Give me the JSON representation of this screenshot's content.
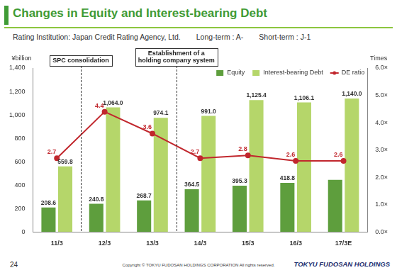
{
  "header": {
    "title": "Changes in Equity and Interest-bearing Debt",
    "rating_agency": "Rating Institution: Japan Credit Rating Agency, Ltd.",
    "long_term": "Long-term : A-",
    "short_term": "Short-term : J-1"
  },
  "chart_data": {
    "type": "bar",
    "ylabel": "¥billion",
    "y2label": "Times",
    "categories": [
      "11/3",
      "12/3",
      "13/3",
      "14/3",
      "15/3",
      "16/3",
      "17/3E"
    ],
    "series": [
      {
        "name": "Equity",
        "type": "bar",
        "color": "#5e9e3d",
        "values": [
          208.6,
          240.8,
          268.7,
          364.5,
          395.3,
          418.8,
          445.0
        ],
        "value_labels": [
          "208.6",
          "240.8",
          "268.7",
          "364.5",
          "395.3",
          "418.8",
          null
        ]
      },
      {
        "name": "Interest-bearing Debt",
        "type": "bar",
        "color": "#b5d66a",
        "values": [
          559.8,
          1064.0,
          974.1,
          991.0,
          1125.4,
          1106.1,
          1140.0
        ],
        "value_labels": [
          "559.8",
          "1,064.0",
          "974.1",
          "991.0",
          "1,125.4",
          "1,106.1",
          "1,140.0"
        ]
      },
      {
        "name": "DE ratio",
        "type": "line",
        "axis": "y2",
        "color": "#c1272d",
        "marker": "circle",
        "values": [
          2.7,
          4.4,
          3.6,
          2.7,
          2.8,
          2.6,
          2.6
        ]
      }
    ],
    "ylim": [
      0,
      1400
    ],
    "yticks": [
      0,
      200,
      400,
      600,
      800,
      {
        "value": 1000,
        "label": "1,000"
      },
      {
        "value": 1200,
        "label": "1,200"
      },
      {
        "value": 1400,
        "label": "1,400"
      }
    ],
    "y2lim": [
      0,
      6
    ],
    "y2ticks": [
      {
        "value": 0,
        "label": "0.0×"
      },
      {
        "value": 1,
        "label": "1.0×"
      },
      {
        "value": 2,
        "label": "2.0×"
      },
      {
        "value": 3,
        "label": "3.0×"
      },
      {
        "value": 4,
        "label": "4.0×"
      },
      {
        "value": 5,
        "label": "5.0×"
      },
      {
        "value": 6,
        "label": "6.0×"
      }
    ],
    "grid": false,
    "legend": "upper right",
    "data_labels": true,
    "annotations": [
      {
        "text": "SPC consolidation",
        "between": [
          "11/3",
          "12/3"
        ]
      },
      {
        "text": "Establishment of a holding company system",
        "between": [
          "13/3",
          "14/3"
        ]
      }
    ]
  },
  "footer": {
    "page": "24",
    "copyright": "Copyright © TOKYU FUDOSAN HOLDINGS CORPORATION All rights reserved.",
    "logo": "TOKYU FUDOSAN HOLDINGS"
  }
}
